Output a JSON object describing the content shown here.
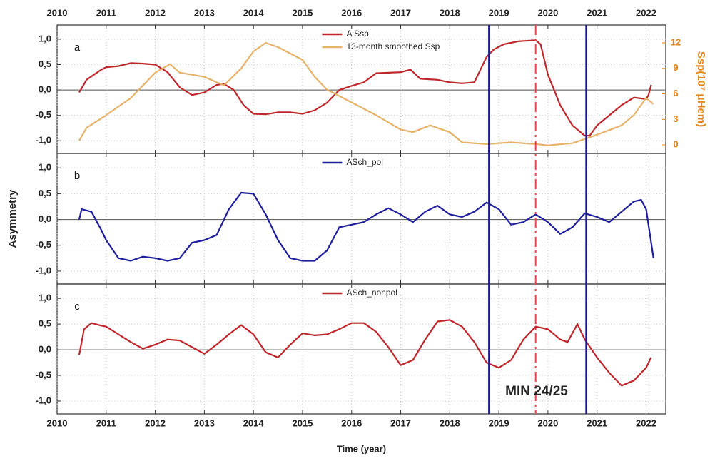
{
  "chart_data": [
    {
      "type": "line",
      "panel_label": "a",
      "xlim": [
        2010,
        2022.4
      ],
      "xticks": [
        2010,
        2011,
        2012,
        2013,
        2014,
        2015,
        2016,
        2017,
        2018,
        2019,
        2020,
        2021,
        2022
      ],
      "ylim": [
        -1.25,
        1.28
      ],
      "yticks": [
        {
          "value": -1,
          "label": "-1,0"
        },
        {
          "value": -0.5,
          "label": "-0,5"
        },
        {
          "value": 0,
          "label": "0,0"
        },
        {
          "value": 0.5,
          "label": "0,5"
        },
        {
          "value": 1,
          "label": "1,0"
        }
      ],
      "y2lim": [
        -1,
        14.1
      ],
      "y2ticks": [
        0,
        3,
        6,
        9,
        12
      ],
      "y2label": "Ssp(10⁷ μHem)",
      "y2color": "#e0861c",
      "grid": true,
      "zero_line": true,
      "legend": "top-center",
      "series": [
        {
          "name": "A Ssp",
          "color": "#c0272d",
          "x": [
            2010.45,
            2010.6,
            2010.9,
            2011.0,
            2011.25,
            2011.5,
            2011.75,
            2012.0,
            2012.25,
            2012.5,
            2012.75,
            2013.0,
            2013.25,
            2013.4,
            2013.6,
            2013.8,
            2014.0,
            2014.25,
            2014.5,
            2014.75,
            2015.0,
            2015.25,
            2015.5,
            2015.75,
            2016.0,
            2016.25,
            2016.5,
            2016.75,
            2017.0,
            2017.2,
            2017.4,
            2017.75,
            2018.0,
            2018.25,
            2018.5,
            2018.75,
            2018.9,
            2019.1,
            2019.4,
            2019.75,
            2019.85,
            2020.0,
            2020.25,
            2020.5,
            2020.75,
            2020.85,
            2021.0,
            2021.25,
            2021.5,
            2021.75,
            2022.0,
            2022.05,
            2022.1
          ],
          "values": [
            -0.05,
            0.2,
            0.4,
            0.45,
            0.47,
            0.53,
            0.52,
            0.5,
            0.35,
            0.05,
            -0.1,
            -0.05,
            0.1,
            0.12,
            0.0,
            -0.3,
            -0.47,
            -0.48,
            -0.44,
            -0.44,
            -0.47,
            -0.4,
            -0.25,
            0.0,
            0.08,
            0.15,
            0.33,
            0.34,
            0.35,
            0.4,
            0.22,
            0.2,
            0.15,
            0.13,
            0.15,
            0.65,
            0.8,
            0.9,
            0.96,
            0.98,
            0.9,
            0.3,
            -0.3,
            -0.7,
            -0.9,
            -0.9,
            -0.7,
            -0.5,
            -0.3,
            -0.15,
            -0.18,
            -0.1,
            0.1
          ]
        },
        {
          "name": "13-month smoothed Ssp",
          "color": "#e6b36a",
          "axis": "y2",
          "x": [
            2010.45,
            2010.6,
            2011.0,
            2011.5,
            2012.0,
            2012.3,
            2012.5,
            2013.0,
            2013.4,
            2013.75,
            2014.0,
            2014.25,
            2014.5,
            2015.0,
            2015.25,
            2015.5,
            2016.0,
            2016.5,
            2017.0,
            2017.25,
            2017.6,
            2018.0,
            2018.25,
            2018.75,
            2019.25,
            2019.75,
            2020.0,
            2020.5,
            2021.0,
            2021.5,
            2021.75,
            2022.0,
            2022.15
          ],
          "values": [
            0.5,
            2,
            3.5,
            5.5,
            8.5,
            9.5,
            8.5,
            8,
            7,
            9,
            11,
            12,
            11.5,
            10,
            8,
            6.5,
            5,
            3.5,
            1.8,
            1.5,
            2.3,
            1.5,
            0.3,
            0.1,
            0.3,
            0.1,
            -0.05,
            0.2,
            1.2,
            2.3,
            3.5,
            5.5,
            4.8
          ]
        }
      ]
    },
    {
      "type": "line",
      "panel_label": "b",
      "xlim": [
        2010,
        2022.4
      ],
      "xticks": [
        2010,
        2011,
        2012,
        2013,
        2014,
        2015,
        2016,
        2017,
        2018,
        2019,
        2020,
        2021,
        2022
      ],
      "ylim": [
        -1.25,
        1.28
      ],
      "yticks": [
        {
          "value": -1,
          "label": "-1,0"
        },
        {
          "value": -0.5,
          "label": "-0,5"
        },
        {
          "value": 0,
          "label": "0,0"
        },
        {
          "value": 0.5,
          "label": "0,5"
        },
        {
          "value": 1,
          "label": "1,0"
        }
      ],
      "ylabel": "Asymmetry",
      "grid": true,
      "zero_line": true,
      "legend": "top-center",
      "series": [
        {
          "name": "ASch_pol",
          "color": "#1f1f9e",
          "x": [
            2010.45,
            2010.5,
            2010.7,
            2010.9,
            2011.0,
            2011.25,
            2011.5,
            2011.75,
            2012.0,
            2012.25,
            2012.5,
            2012.75,
            2013.0,
            2013.25,
            2013.5,
            2013.75,
            2014.0,
            2014.25,
            2014.5,
            2014.75,
            2015.0,
            2015.25,
            2015.5,
            2015.75,
            2016.0,
            2016.25,
            2016.5,
            2016.75,
            2017.0,
            2017.25,
            2017.5,
            2017.75,
            2018.0,
            2018.25,
            2018.5,
            2018.75,
            2019.0,
            2019.25,
            2019.5,
            2019.75,
            2020.0,
            2020.25,
            2020.5,
            2020.75,
            2021.0,
            2021.25,
            2021.5,
            2021.75,
            2021.9,
            2022.0,
            2022.15
          ],
          "values": [
            0.0,
            0.2,
            0.15,
            -0.2,
            -0.4,
            -0.75,
            -0.8,
            -0.72,
            -0.75,
            -0.8,
            -0.75,
            -0.45,
            -0.4,
            -0.3,
            0.2,
            0.52,
            0.5,
            0.1,
            -0.4,
            -0.75,
            -0.8,
            -0.8,
            -0.6,
            -0.15,
            -0.1,
            -0.05,
            0.1,
            0.22,
            0.1,
            -0.05,
            0.15,
            0.27,
            0.1,
            0.05,
            0.15,
            0.33,
            0.2,
            -0.1,
            -0.05,
            0.1,
            -0.05,
            -0.28,
            -0.15,
            0.12,
            0.05,
            -0.05,
            0.15,
            0.35,
            0.38,
            0.2,
            -0.75
          ]
        }
      ]
    },
    {
      "type": "line",
      "panel_label": "c",
      "xlim": [
        2010,
        2022.4
      ],
      "xticks": [
        2010,
        2011,
        2012,
        2013,
        2014,
        2015,
        2016,
        2017,
        2018,
        2019,
        2020,
        2021,
        2022
      ],
      "ylim": [
        -1.25,
        1.28
      ],
      "yticks": [
        {
          "value": -1,
          "label": "-1,0"
        },
        {
          "value": -0.5,
          "label": "-0,5"
        },
        {
          "value": 0,
          "label": "0,0"
        },
        {
          "value": 0.5,
          "label": "0,5"
        },
        {
          "value": 1,
          "label": "1,0"
        }
      ],
      "xlabel": "Time (year)",
      "grid": true,
      "zero_line": true,
      "legend": "top-center",
      "series": [
        {
          "name": "ASch_nonpol",
          "color": "#c0272d",
          "x": [
            2010.45,
            2010.55,
            2010.7,
            2010.9,
            2011.0,
            2011.25,
            2011.5,
            2011.75,
            2012.0,
            2012.25,
            2012.5,
            2012.75,
            2013.0,
            2013.25,
            2013.5,
            2013.75,
            2014.0,
            2014.25,
            2014.5,
            2014.75,
            2015.0,
            2015.25,
            2015.5,
            2015.75,
            2016.0,
            2016.25,
            2016.5,
            2016.75,
            2017.0,
            2017.25,
            2017.5,
            2017.75,
            2018.0,
            2018.25,
            2018.5,
            2018.75,
            2019.0,
            2019.25,
            2019.5,
            2019.75,
            2020.0,
            2020.25,
            2020.4,
            2020.6,
            2020.75,
            2021.0,
            2021.25,
            2021.5,
            2021.75,
            2022.0,
            2022.1
          ],
          "values": [
            -0.1,
            0.4,
            0.52,
            0.47,
            0.45,
            0.3,
            0.15,
            0.02,
            0.1,
            0.2,
            0.18,
            0.05,
            -0.08,
            0.1,
            0.3,
            0.48,
            0.3,
            -0.05,
            -0.15,
            0.1,
            0.32,
            0.28,
            0.3,
            0.4,
            0.52,
            0.52,
            0.35,
            0.05,
            -0.3,
            -0.2,
            0.2,
            0.55,
            0.58,
            0.45,
            0.15,
            -0.25,
            -0.35,
            -0.2,
            0.2,
            0.45,
            0.4,
            0.2,
            0.15,
            0.5,
            0.2,
            -0.15,
            -0.45,
            -0.7,
            -0.6,
            -0.35,
            -0.15
          ]
        }
      ]
    }
  ],
  "reference_lines": [
    {
      "x": 2018.8,
      "color": "#1c1c8a",
      "style": "solid"
    },
    {
      "x": 2019.75,
      "color": "#e8454a",
      "style": "dash-dot"
    },
    {
      "x": 2020.78,
      "color": "#1c1c8a",
      "style": "solid"
    }
  ],
  "annotation": "MIN 24/25"
}
